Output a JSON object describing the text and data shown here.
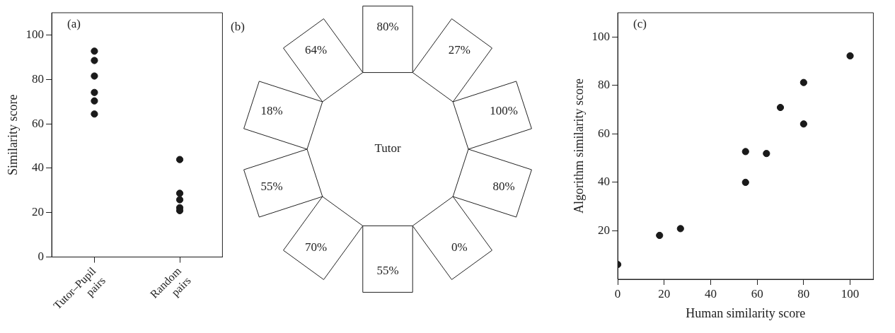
{
  "chart_data": [
    {
      "type": "scatter",
      "title": "(a)",
      "ylabel": "Similarity score",
      "categories": [
        "Tutor–Pupil pairs",
        "Random pairs"
      ],
      "ylim": [
        0,
        110
      ],
      "yticks": [
        0,
        20,
        40,
        60,
        80,
        100
      ],
      "grid": false,
      "legend": false,
      "marker": "circle",
      "series": [
        {
          "color": "#1a1a1a",
          "x": [
            "Tutor–Pupil pairs",
            "Tutor–Pupil pairs",
            "Tutor–Pupil pairs",
            "Tutor–Pupil pairs",
            "Tutor–Pupil pairs",
            "Tutor–Pupil pairs",
            "Random pairs",
            "Random pairs",
            "Random pairs",
            "Random pairs",
            "Random pairs"
          ],
          "values": [
            92.7,
            88.5,
            81.5,
            74.1,
            70.3,
            64.4,
            43.9,
            28.7,
            25.8,
            22.2,
            20.9
          ]
        }
      ]
    },
    {
      "type": "other",
      "title": "(b)",
      "annotations": [
        "Tutor"
      ],
      "categories": [
        "80%",
        "27%",
        "100%",
        "80%",
        "0%",
        "55%",
        "70%",
        "55%",
        "18%",
        "64%"
      ]
    },
    {
      "type": "scatter",
      "title": "(c)",
      "xlabel": "Human similarity score",
      "ylabel": "Algorithm similarity score",
      "xlim": [
        0,
        110
      ],
      "xticks": [
        0,
        20,
        40,
        60,
        80,
        100
      ],
      "ylim": [
        0,
        110
      ],
      "yticks": [
        20,
        40,
        60,
        80,
        100
      ],
      "grid": false,
      "legend": false,
      "marker": "circle",
      "series": [
        {
          "color": "#1a1a1a",
          "x": [
            0,
            18,
            27,
            55,
            55,
            64,
            70,
            80,
            80,
            100
          ],
          "values": [
            6.1,
            18.1,
            20.9,
            52.7,
            40,
            51.9,
            70.9,
            81.2,
            64.1,
            92.2
          ]
        }
      ]
    }
  ]
}
